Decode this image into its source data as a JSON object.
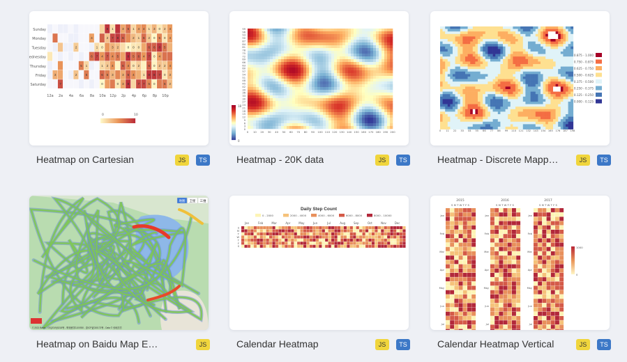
{
  "cards": [
    {
      "title": "Heatmap on Cartesian",
      "badges": [
        "JS",
        "TS"
      ],
      "thumb": {
        "days": [
          "Sunday",
          "Monday",
          "Tuesday",
          "Wednesday",
          "Thursday",
          "Friday",
          "Saturday"
        ],
        "hours": [
          "12a",
          "2a",
          "4a",
          "6a",
          "8a",
          "10a",
          "12p",
          "2p",
          "4p",
          "6p",
          "8p",
          "10p"
        ],
        "legend": [
          "0",
          "10"
        ]
      }
    },
    {
      "title": "Heatmap - 20K data",
      "badges": [
        "JS",
        "TS"
      ],
      "thumb": {
        "y_ticks": [
          "99",
          "96",
          "93",
          "90",
          "87",
          "84",
          "81",
          "78",
          "75",
          "72",
          "69",
          "66",
          "63",
          "60",
          "57",
          "54",
          "51",
          "48",
          "45",
          "42",
          "39",
          "36",
          "33",
          "30",
          "27",
          "24",
          "21",
          "18",
          "15",
          "12",
          "9",
          "6",
          "3",
          "0"
        ],
        "x_ticks": [
          "0",
          "10",
          "20",
          "30",
          "40",
          "50",
          "60",
          "70",
          "80",
          "90",
          "100",
          "110",
          "120",
          "130",
          "140",
          "150",
          "160",
          "170",
          "180",
          "190",
          "200"
        ],
        "legend": [
          "18",
          "0"
        ]
      }
    },
    {
      "title": "Heatmap - Discrete Mapp…",
      "badges": [
        "JS",
        "TS"
      ],
      "thumb": {
        "legend": [
          "0.875 - 1.000",
          "0.750 - 0.875",
          "0.625 - 0.750",
          "0.500 - 0.625",
          "0.375 - 0.500",
          "0.250 - 0.375",
          "0.125 - 0.250",
          "0.000 - 0.125"
        ],
        "x_ticks": [
          "0",
          "11",
          "22",
          "33",
          "44",
          "55",
          "66",
          "77",
          "88",
          "99",
          "110",
          "121",
          "132",
          "143",
          "154",
          "165",
          "176",
          "187",
          "198"
        ]
      }
    },
    {
      "title": "Heatmap on Baidu Map Exten…",
      "badges": [
        "JS"
      ],
      "thumb": {
        "map_footer": "© 2021 Baidu - GS(2019)5218号 - 甲测资字1100930 - 京ICP证030173号 - Data © 长地万方",
        "map_buttons": [
          "地图",
          "卫星",
          "三维"
        ]
      }
    },
    {
      "title": "Calendar Heatmap",
      "badges": [
        "JS",
        "TS"
      ],
      "thumb": {
        "chart_title": "Daily Step Count",
        "legend": [
          "0 - 2000",
          "2000 - 4000",
          "4000 - 6000",
          "6000 - 8000",
          "8000 - 10000"
        ],
        "months": [
          "Jan",
          "Feb",
          "Mar",
          "Apr",
          "May",
          "Jun",
          "Jul",
          "Aug",
          "Sep",
          "Oct",
          "Nov",
          "Dec"
        ],
        "weekdays": [
          "S",
          "M",
          "T",
          "W",
          "T",
          "F",
          "S"
        ]
      }
    },
    {
      "title": "Calendar Heatmap Vertical",
      "badges": [
        "JS",
        "TS"
      ],
      "thumb": {
        "years": [
          "2015",
          "2016",
          "2017"
        ],
        "weekday_header": "S M T W T F S",
        "months": [
          "Jan",
          "Feb",
          "Mar",
          "Apr",
          "May",
          "Jun",
          "Jul"
        ],
        "legend": [
          "1000",
          "0"
        ]
      }
    }
  ],
  "colors": {
    "badge_js": "#f0d53c",
    "badge_ts": "#3c78c7"
  }
}
